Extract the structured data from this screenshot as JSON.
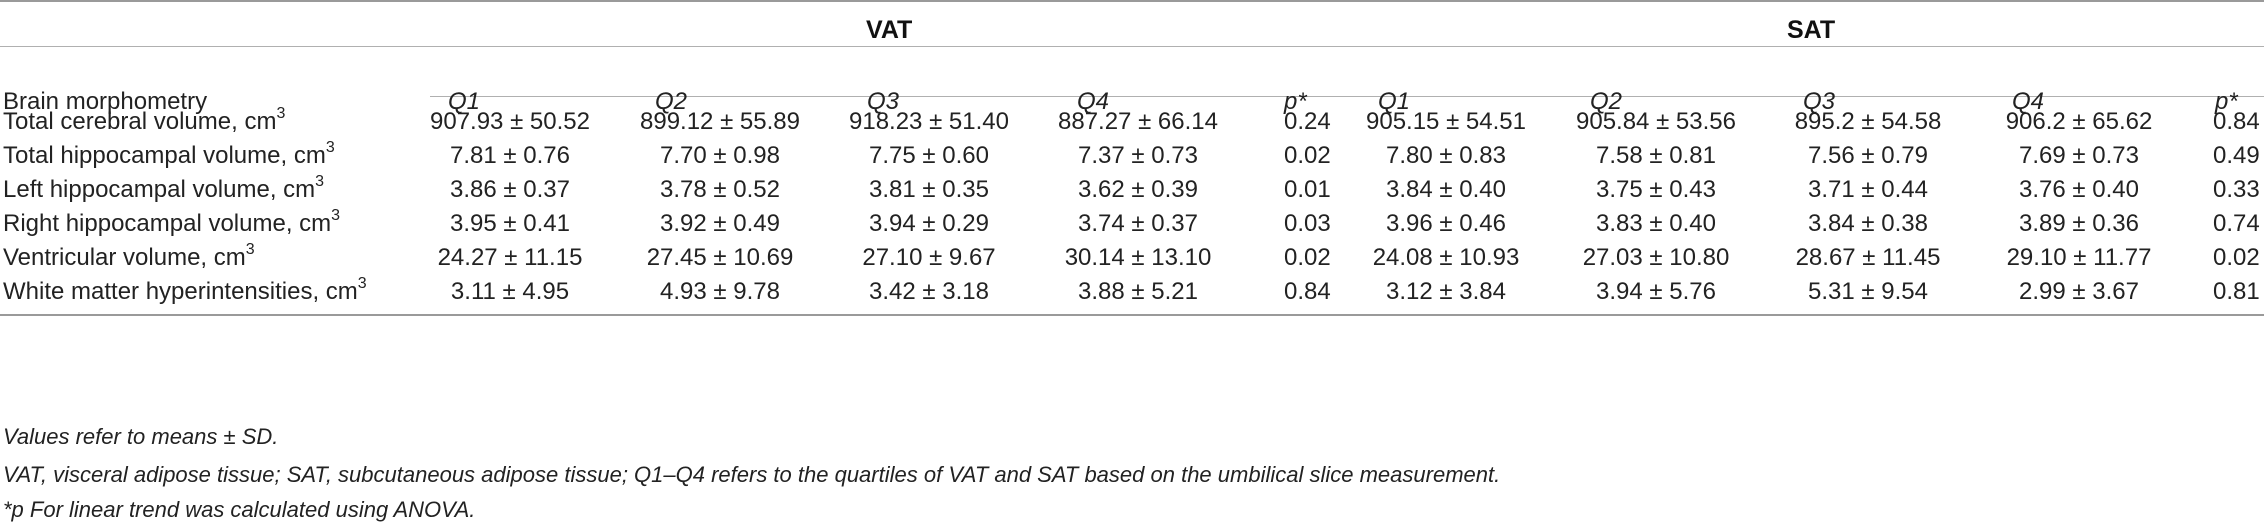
{
  "groups": [
    "VAT",
    "SAT"
  ],
  "header": {
    "label": "Brain morphometry",
    "cols": [
      "Q1",
      "Q2",
      "Q3",
      "Q4",
      "p*",
      "Q1",
      "Q2",
      "Q3",
      "Q4",
      "p*"
    ]
  },
  "unit_sup": "3",
  "rows": [
    {
      "label": "Total cerebral volume, cm",
      "vals": [
        "907.93 ± 50.52",
        "899.12 ± 55.89",
        "918.23 ± 51.40",
        "887.27 ± 66.14",
        "0.24",
        "905.15 ± 54.51",
        "905.84 ± 53.56",
        "895.2 ± 54.58",
        "906.2 ± 65.62",
        "0.84"
      ]
    },
    {
      "label": "Total hippocampal volume, cm",
      "vals": [
        "7.81 ± 0.76",
        "7.70 ± 0.98",
        "7.75 ± 0.60",
        "7.37 ± 0.73",
        "0.02",
        "7.80 ± 0.83",
        "7.58 ± 0.81",
        "7.56 ± 0.79",
        "7.69 ± 0.73",
        "0.49"
      ]
    },
    {
      "label": "Left hippocampal volume, cm",
      "vals": [
        "3.86 ± 0.37",
        "3.78 ± 0.52",
        "3.81 ± 0.35",
        "3.62 ± 0.39",
        "0.01",
        "3.84 ± 0.40",
        "3.75 ± 0.43",
        "3.71 ± 0.44",
        "3.76 ± 0.40",
        "0.33"
      ]
    },
    {
      "label": "Right hippocampal volume, cm",
      "vals": [
        "3.95 ± 0.41",
        "3.92 ± 0.49",
        "3.94 ± 0.29",
        "3.74 ± 0.37",
        "0.03",
        "3.96 ± 0.46",
        "3.83 ± 0.40",
        "3.84 ± 0.38",
        "3.89 ± 0.36",
        "0.74"
      ]
    },
    {
      "label": "Ventricular volume, cm",
      "vals": [
        "24.27 ± 11.15",
        "27.45 ± 10.69",
        "27.10 ± 9.67",
        "30.14 ± 13.10",
        "0.02",
        "24.08 ± 10.93",
        "27.03 ± 10.80",
        "28.67 ± 11.45",
        "29.10 ± 11.77",
        "0.02"
      ]
    },
    {
      "label": "White matter hyperintensities, cm",
      "vals": [
        "3.11 ± 4.95",
        "4.93 ± 9.78",
        "3.42 ± 3.18",
        "3.88 ± 5.21",
        "0.84",
        "3.12 ± 3.84",
        "3.94 ± 5.76",
        "5.31 ± 9.54",
        "2.99 ± 3.67",
        "0.81"
      ]
    }
  ],
  "footnotes": [
    "Values refer to means ± SD.",
    "VAT, visceral adipose tissue; SAT, subcutaneous adipose tissue; Q1–Q4 refers to the quartiles of VAT and SAT based on the umbilical slice measurement.",
    "*p For linear trend was calculated using ANOVA."
  ]
}
